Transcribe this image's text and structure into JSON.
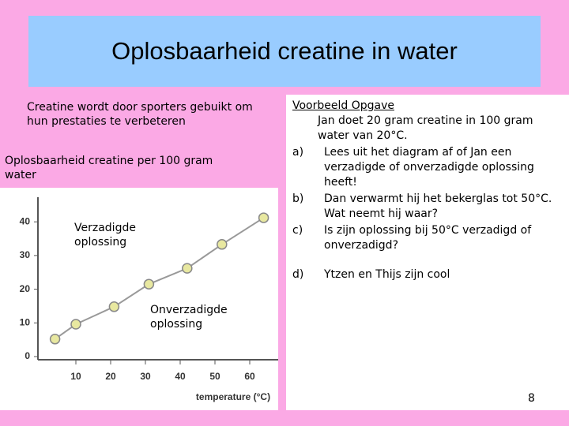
{
  "title": "Oplosbaarheid creatine in water",
  "left": {
    "intro": "Creatine wordt door sporters gebuikt om hun prestaties te verbeteren",
    "caption": "Oplosbaarheid creatine per 100 gram water"
  },
  "chart_data": {
    "type": "line",
    "x": [
      4,
      10,
      21,
      31,
      42,
      52,
      64
    ],
    "values": [
      5.2,
      9.6,
      14.8,
      21.5,
      26.2,
      33.3,
      41.2
    ],
    "color": "#e8e8a0",
    "xlim": [
      0,
      68
    ],
    "ylim": [
      0,
      45
    ],
    "xticks": [
      10,
      20,
      30,
      40,
      50,
      60
    ],
    "yticks": [
      0,
      10,
      20,
      30,
      40
    ],
    "xlabel": "temperature (°C)",
    "annotations": [
      "Verzadigde oplossing",
      "Onverzadigde oplossing"
    ]
  },
  "right": {
    "heading": "Voorbeeld Opgave",
    "intro": "Jan doet 20 gram creatine in 100 gram water van 20°C.",
    "items": [
      {
        "label": "a)",
        "text": "Lees uit het diagram af of Jan een verzadigde of onverzadigde oplossing heeft!"
      },
      {
        "label": "b)",
        "text": "Dan verwarmt hij het bekerglas tot 50°C. Wat neemt hij waar?"
      },
      {
        "label": "c)",
        "text": "Is zijn oplossing bij 50°C verzadigd of onverzadigd?"
      },
      {
        "label": "d)",
        "text": "Ytzen en Thijs zijn cool"
      }
    ]
  },
  "page_number": "8"
}
